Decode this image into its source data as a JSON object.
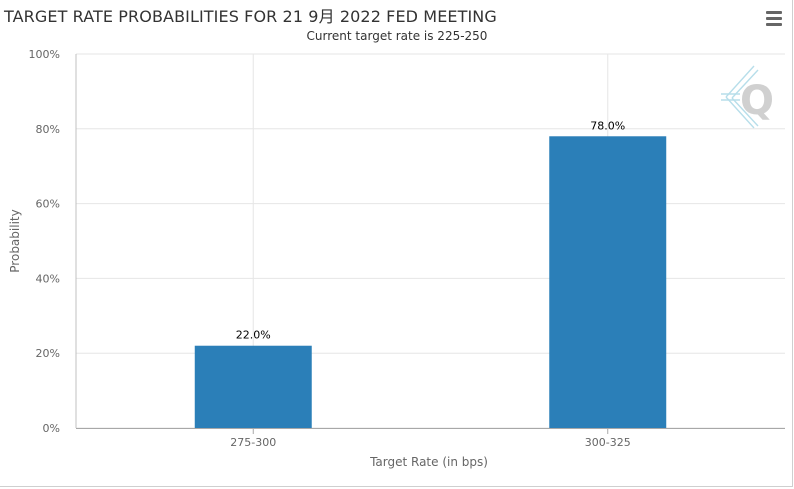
{
  "chart_data": {
    "type": "bar",
    "title": "TARGET RATE PROBABILITIES FOR 21 9月 2022 FED MEETING",
    "subtitle": "Current target rate is 225-250",
    "xlabel": "Target Rate (in bps)",
    "ylabel": "Probability",
    "categories": [
      "275-300",
      "300-325"
    ],
    "values": [
      22.0,
      78.0
    ],
    "data_labels": [
      "22.0%",
      "78.0%"
    ],
    "ylim": [
      0,
      100
    ],
    "yticks": [
      0,
      20,
      40,
      60,
      80,
      100
    ],
    "ytick_labels": [
      "0%",
      "20%",
      "40%",
      "60%",
      "80%",
      "100%"
    ],
    "grid": true,
    "legend": false,
    "bar_color": "#2b7fb8"
  },
  "toolbar": {
    "menu_icon": "hamburger-menu-icon"
  },
  "watermark": {
    "icon": "quikstrike-q-logo-icon",
    "letter": "Q"
  }
}
